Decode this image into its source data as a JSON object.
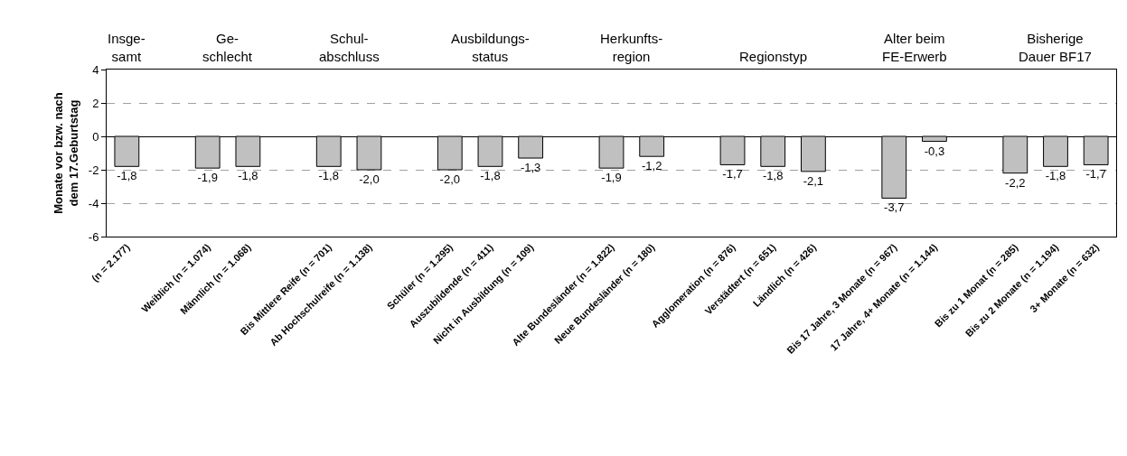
{
  "chart_data": {
    "type": "bar",
    "ylabel": "Monate vor bzw. nach\ndem 17.Geburtstag",
    "categories": [
      "(n = 2.177)",
      null,
      "Weiblich (n = 1.074)",
      "Männlich (n = 1.068)",
      null,
      "Bis Mittlere Reife (n = 701)",
      "Ab Hochschulreife (n = 1.138)",
      null,
      "Schüler (n = 1.295)",
      "Auszubildende (n = 411)",
      "Nicht in Ausbildung (n = 109)",
      null,
      "Alte Bundesländer (n = 1.822)",
      "Neue Bundesländer (n = 180)",
      null,
      "Agglomeration (n = 876)",
      "Verstädtert (n = 651)",
      "Ländlich (n = 426)",
      null,
      "Bis 17 Jahre, 3 Monate (n = 967)",
      "17 Jahre, 4+ Monate (n = 1.144)",
      null,
      "Bis zu 1 Monat (n = 285)",
      "Bis zu 2 Monate (n = 1.194)",
      "3+ Monate (n = 632)"
    ],
    "values": [
      -1.8,
      null,
      -1.9,
      -1.8,
      null,
      -1.8,
      -2.0,
      null,
      -2.0,
      -1.8,
      -1.3,
      null,
      -1.9,
      -1.2,
      null,
      -1.7,
      -1.8,
      -2.1,
      null,
      -3.7,
      -0.3,
      null,
      -2.2,
      -1.8,
      -1.7
    ],
    "value_labels": [
      "-1,8",
      null,
      "-1,9",
      "-1,8",
      null,
      "-1,8",
      "-2,0",
      null,
      "-2,0",
      "-1,8",
      "-1,3",
      null,
      "-1,9",
      "-1,2",
      null,
      "-1,7",
      "-1,8",
      "-2,1",
      null,
      "-3,7",
      "-0,3",
      null,
      "-2,2",
      "-1,8",
      "-1,7"
    ],
    "color": "#c0c0c0",
    "annotations": [
      "Insge-\nsamt",
      "Ge-\nschlecht",
      "Schul-\nabschluss",
      "Ausbildungs-\nstatus",
      "Herkunfts-\nregion",
      "Regionstyp",
      "Alter beim\nFE-Erwerb",
      "Bisherige\nDauer BF17"
    ],
    "ylim": [
      -6,
      4
    ],
    "yticks": [
      -6,
      -4,
      -2,
      0,
      2,
      4
    ],
    "grid": "y"
  }
}
